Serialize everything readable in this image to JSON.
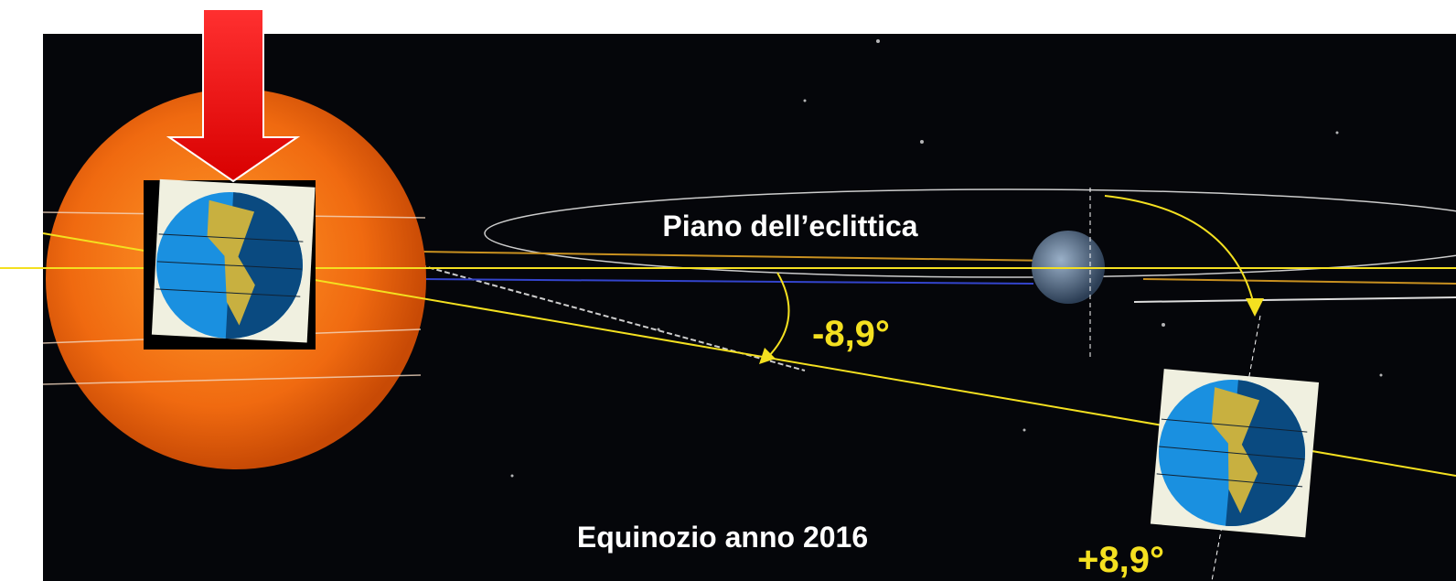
{
  "labels": {
    "ecliptic_plane": "Piano dell’eclittica",
    "angle_negative": "-8,9°",
    "equinox": "Equinozio anno 2016",
    "angle_positive": "+8,9°"
  }
}
